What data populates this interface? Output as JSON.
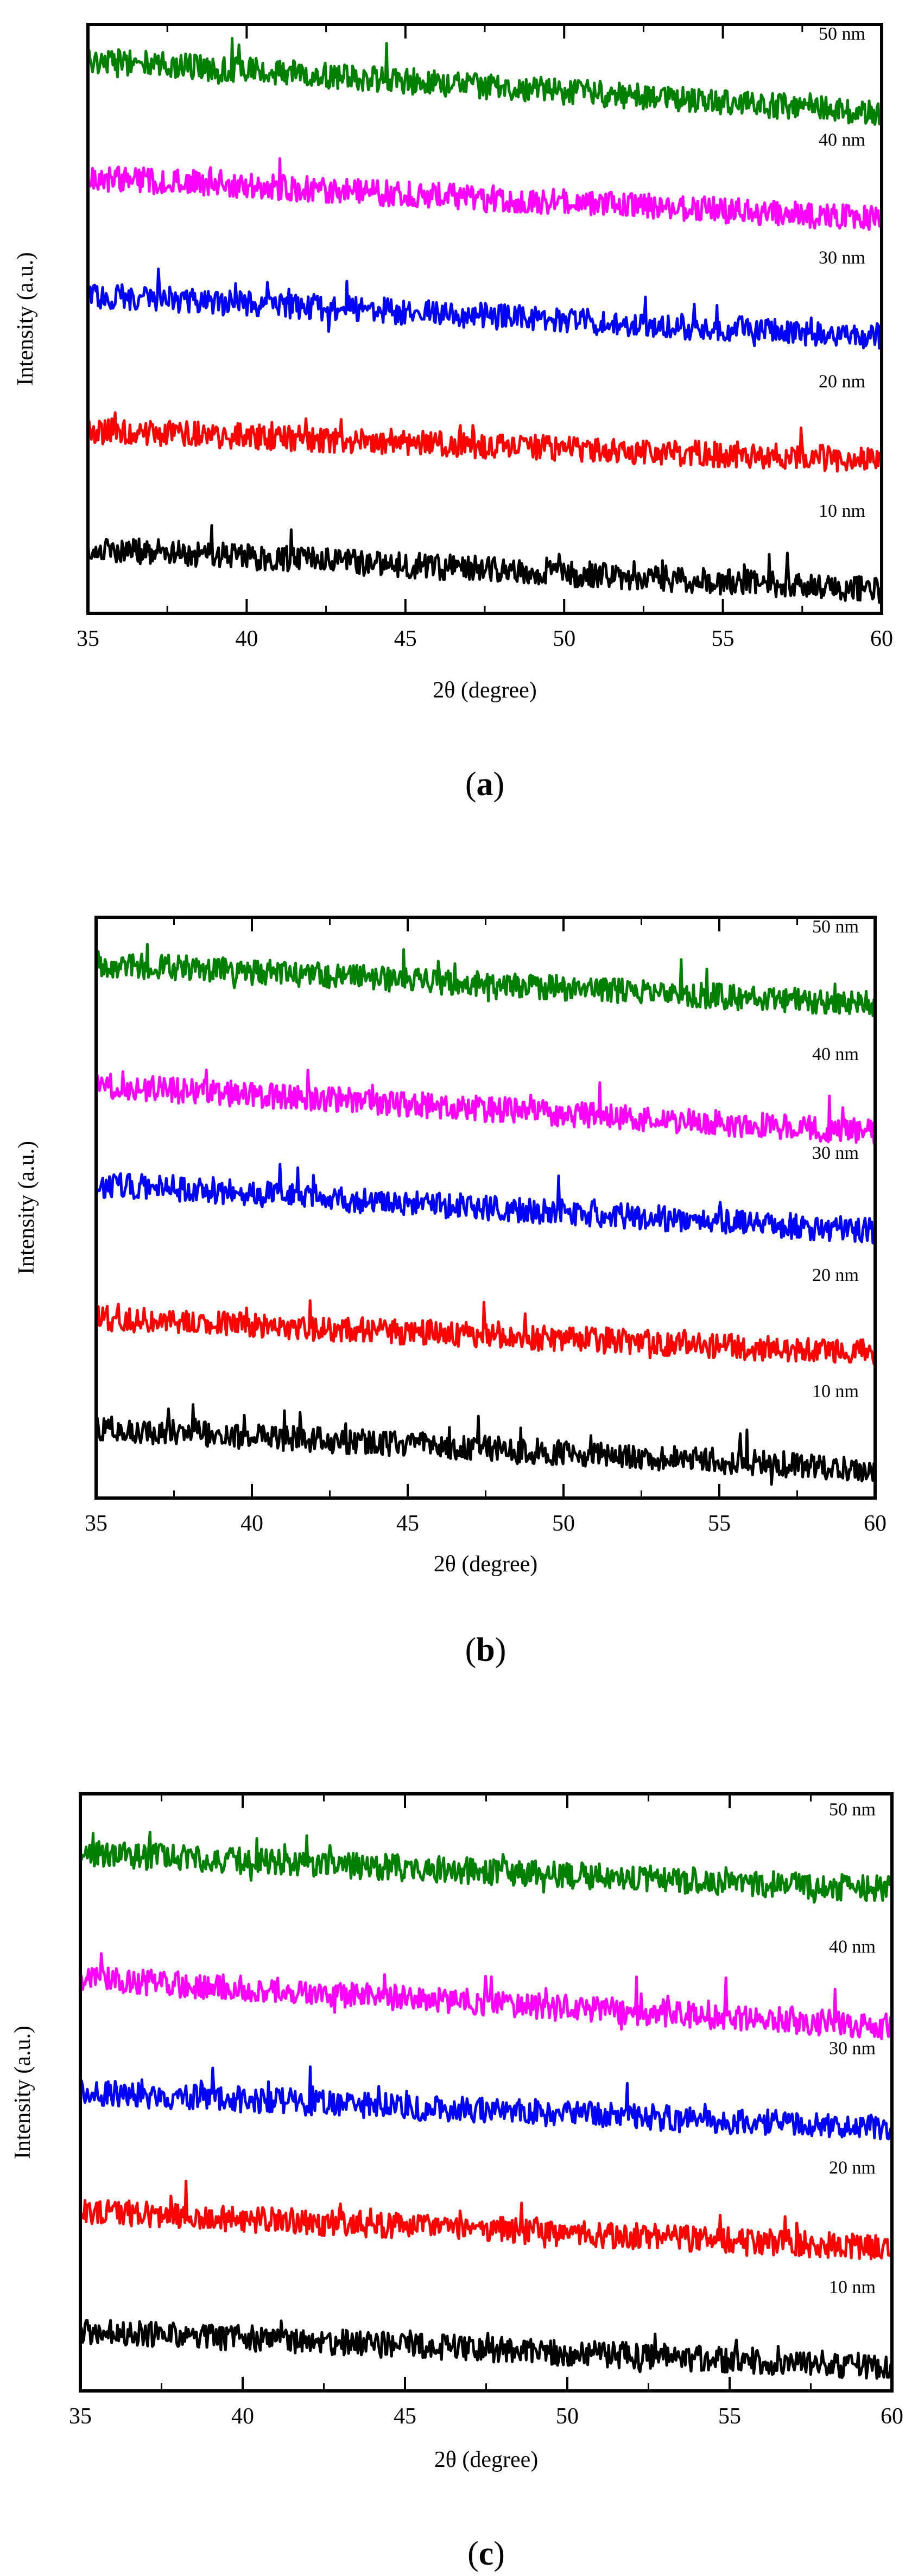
{
  "chart_data": [
    {
      "type": "line",
      "panel_label": "a",
      "xlabel": "2θ (degree)",
      "ylabel": "Intensity (a.u.)",
      "xlim": [
        35,
        60
      ],
      "xticks": [
        35,
        40,
        45,
        50,
        55,
        60
      ],
      "y_ticks_shown": false,
      "series": [
        {
          "name": "50 nm",
          "color": "#008000",
          "x": [
            35,
            60
          ],
          "y": [
            4.55,
            4.1
          ]
        },
        {
          "name": "40 nm",
          "color": "#ff00ff",
          "x": [
            35,
            60
          ],
          "y": [
            3.55,
            3.2
          ]
        },
        {
          "name": "30 nm",
          "color": "#0000ff",
          "x": [
            35,
            60
          ],
          "y": [
            2.55,
            2.2
          ]
        },
        {
          "name": "20 nm",
          "color": "#ff0000",
          "x": [
            35,
            60
          ],
          "y": [
            1.4,
            1.15
          ]
        },
        {
          "name": "10 nm",
          "color": "#000000",
          "x": [
            35,
            60
          ],
          "y": [
            0.4,
            0.05
          ]
        }
      ]
    },
    {
      "type": "line",
      "panel_label": "b",
      "xlabel": "2θ (degree)",
      "ylabel": "Intensity (a.u.)",
      "xlim": [
        35,
        60
      ],
      "xticks": [
        35,
        40,
        45,
        50,
        55,
        60
      ],
      "y_ticks_shown": false,
      "series": [
        {
          "name": "50 nm",
          "color": "#008000",
          "x": [
            35,
            60
          ],
          "y": [
            4.45,
            4.1
          ]
        },
        {
          "name": "40 nm",
          "color": "#ff00ff",
          "x": [
            35,
            60
          ],
          "y": [
            3.4,
            3.0
          ]
        },
        {
          "name": "30 nm",
          "color": "#0000ff",
          "x": [
            35,
            60
          ],
          "y": [
            2.55,
            2.15
          ]
        },
        {
          "name": "20 nm",
          "color": "#ff0000",
          "x": [
            35,
            60
          ],
          "y": [
            1.4,
            1.1
          ]
        },
        {
          "name": "10 nm",
          "color": "#000000",
          "x": [
            35,
            60
          ],
          "y": [
            0.45,
            0.1
          ]
        }
      ]
    },
    {
      "type": "line",
      "panel_label": "c",
      "xlabel": "2θ (degree)",
      "ylabel": "Intensity (a.u.)",
      "xlim": [
        35,
        60
      ],
      "xticks": [
        35,
        40,
        45,
        50,
        55,
        60
      ],
      "y_ticks_shown": false,
      "series": [
        {
          "name": "50 nm",
          "color": "#008000",
          "x": [
            35,
            60
          ],
          "y": [
            4.35,
            4.05
          ]
        },
        {
          "name": "40 nm",
          "color": "#ff00ff",
          "x": [
            35,
            60
          ],
          "y": [
            3.3,
            2.9
          ]
        },
        {
          "name": "30 nm",
          "color": "#0000ff",
          "x": [
            35,
            60
          ],
          "y": [
            2.35,
            2.05
          ]
        },
        {
          "name": "20 nm",
          "color": "#ff0000",
          "x": [
            35,
            60
          ],
          "y": [
            1.35,
            1.05
          ]
        },
        {
          "name": "10 nm",
          "color": "#000000",
          "x": [
            35,
            60
          ],
          "y": [
            0.35,
            0.05
          ]
        }
      ]
    }
  ]
}
